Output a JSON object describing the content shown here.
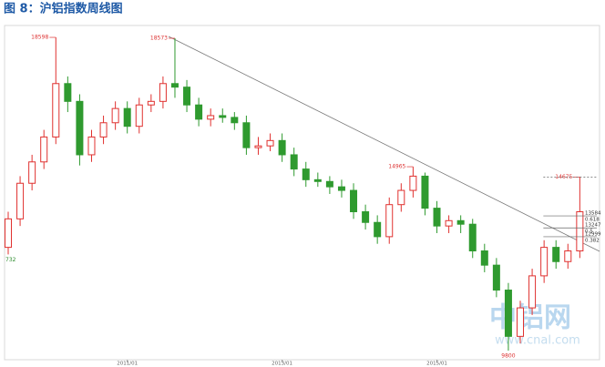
{
  "chart_data": {
    "type": "candlestick",
    "title": "图 8：沪铝指数周线图",
    "up_color": "#e0312f",
    "down_color": "#2f9a2f",
    "ylim": [
      9544,
      18880
    ],
    "open": [
      12700,
      13500,
      14500,
      15100,
      15800,
      17300,
      16800,
      15300,
      15800,
      16200,
      16600,
      16100,
      16700,
      16800,
      17300,
      17200,
      16700,
      16300,
      16400,
      16350,
      16200,
      15500,
      15550,
      15700,
      15300,
      14900,
      14600,
      14550,
      14400,
      14300,
      13700,
      13400,
      13000,
      13900,
      14300,
      14700,
      13800,
      13300,
      13450,
      13350,
      12600,
      12200,
      11500,
      10200,
      11000,
      11900,
      12700,
      12300,
      12600
    ],
    "high": [
      13700,
      14700,
      15300,
      16000,
      18598,
      17500,
      17000,
      16000,
      16400,
      16800,
      16800,
      16900,
      17000,
      17500,
      18573,
      17400,
      16900,
      16600,
      16600,
      16500,
      16400,
      15800,
      15900,
      15900,
      15500,
      15100,
      14800,
      14700,
      14600,
      14500,
      13900,
      13600,
      14100,
      14500,
      14965,
      14800,
      14000,
      13600,
      13600,
      13500,
      12800,
      12400,
      11700,
      11200,
      12100,
      12900,
      12900,
      12800,
      14675
    ],
    "low": [
      12500,
      13300,
      14300,
      14900,
      15600,
      16500,
      15000,
      15100,
      15600,
      16000,
      15900,
      15900,
      16500,
      16600,
      16900,
      16500,
      16100,
      16100,
      16200,
      16000,
      15300,
      15300,
      15400,
      15100,
      14700,
      14400,
      14400,
      14200,
      14100,
      13500,
      13200,
      12800,
      12800,
      13700,
      14100,
      13600,
      13100,
      13100,
      13100,
      12400,
      12000,
      11300,
      9800,
      10000,
      10800,
      11700,
      12100,
      12100,
      12400
    ],
    "close": [
      13500,
      14500,
      15100,
      15800,
      17300,
      16800,
      15300,
      15800,
      16200,
      16600,
      16100,
      16700,
      16800,
      17300,
      17200,
      16700,
      16300,
      16400,
      16350,
      16200,
      15500,
      15550,
      15700,
      15300,
      14900,
      14600,
      14550,
      14400,
      14300,
      13700,
      13400,
      13000,
      13900,
      14300,
      14700,
      13800,
      13300,
      13450,
      13350,
      12600,
      12200,
      11500,
      10200,
      11000,
      11900,
      12700,
      12300,
      12600,
      13700
    ],
    "high_labels": [
      4,
      14,
      34,
      48
    ],
    "low_labels": [
      42
    ],
    "start_label": "732",
    "levels": [
      {
        "value": 13584,
        "ratio": 0.618
      },
      {
        "value": 13247,
        "ratio": 0.5
      },
      {
        "value": 12999,
        "ratio": 0.382
      }
    ],
    "xticks": [
      {
        "value": 10,
        "label": "2011/01"
      },
      {
        "value": 23,
        "label": "2013/01"
      },
      {
        "value": 36,
        "label": "2015/01"
      }
    ],
    "watermark": "中铝网",
    "watermark_url": "www.cnal.com"
  }
}
